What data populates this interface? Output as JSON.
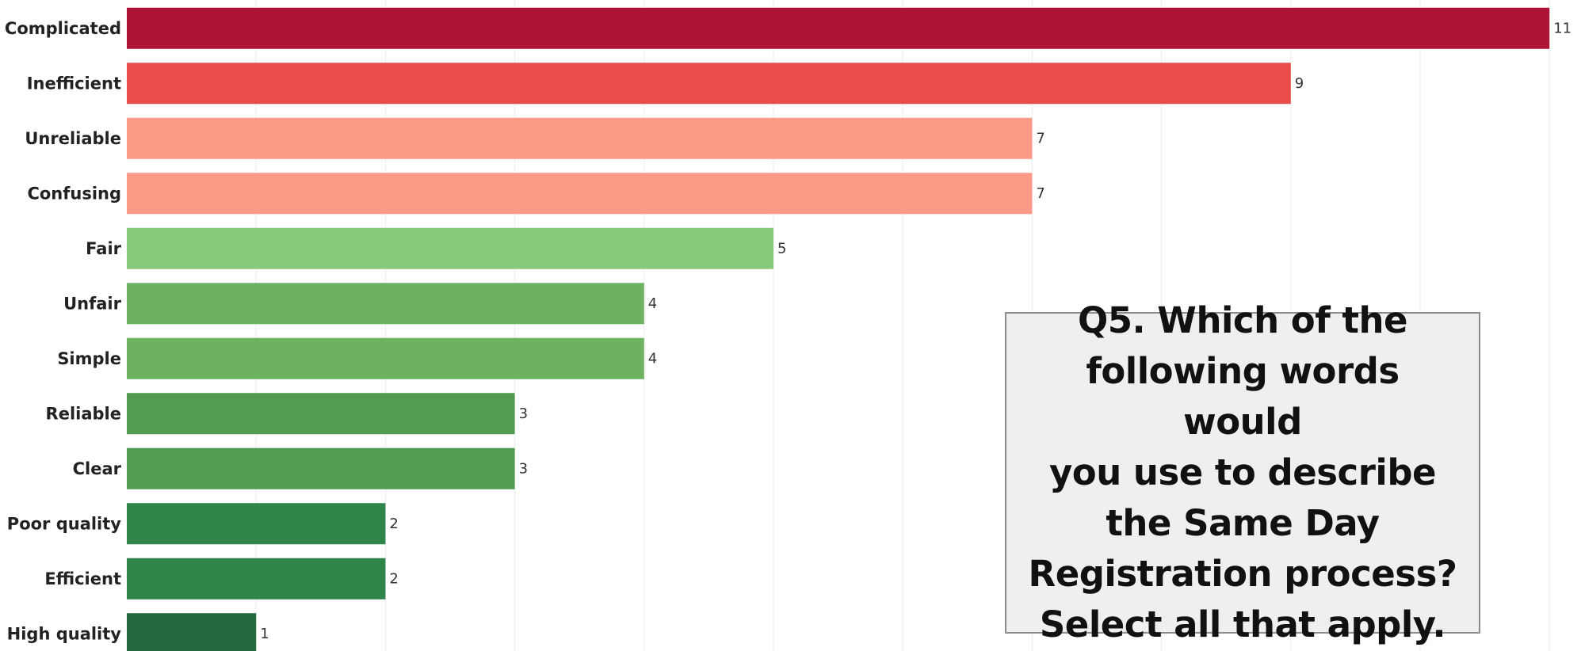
{
  "chart_data": {
    "type": "bar",
    "orientation": "horizontal",
    "categories": [
      "Complicated",
      "Inefficient",
      "Unreliable",
      "Confusing",
      "Fair",
      "Unfair",
      "Simple",
      "Reliable",
      "Clear",
      "Poor quality",
      "Efficient",
      "High quality"
    ],
    "values": [
      11,
      9,
      7,
      7,
      5,
      4,
      4,
      3,
      3,
      2,
      2,
      1
    ],
    "colors": [
      "#ae1236",
      "#e84d4a",
      "#fb9a86",
      "#fb9a86",
      "#87cb79",
      "#6cb261",
      "#6cb261",
      "#519b53",
      "#519b53",
      "#30854a",
      "#30854a",
      "#246a3f"
    ],
    "xlim": [
      0,
      11
    ],
    "grid": true,
    "data_labels": true,
    "title": "",
    "xlabel": "",
    "ylabel": ""
  },
  "question": {
    "lines": [
      "Q5. Which of the",
      "following words would",
      "you use to describe",
      "the Same Day",
      "Registration process?",
      "Select all that apply."
    ]
  }
}
